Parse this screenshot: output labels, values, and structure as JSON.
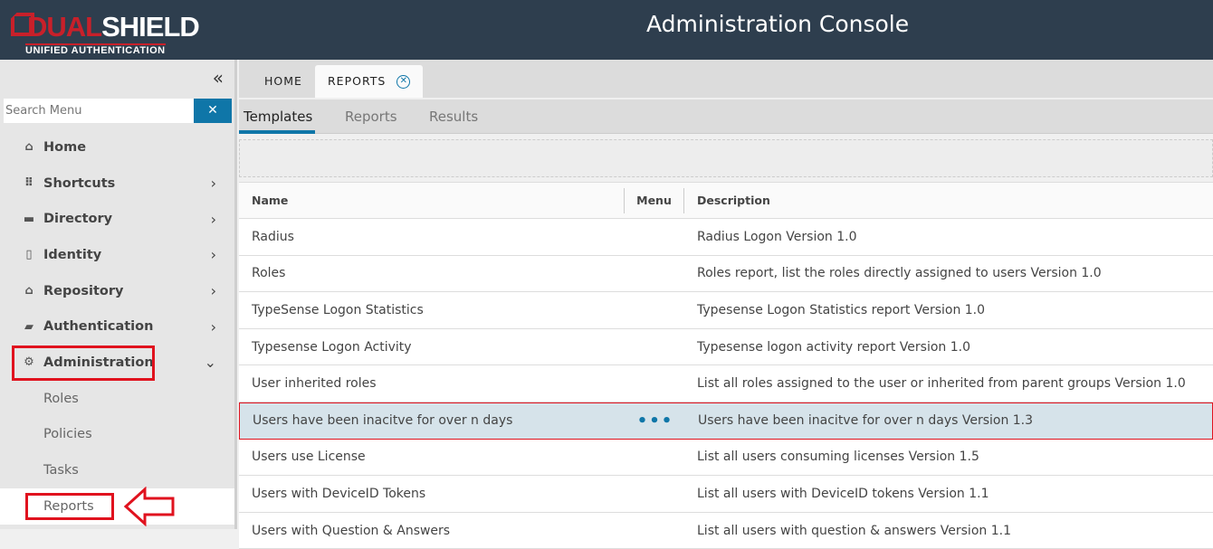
{
  "header": {
    "logo_text_red": "DUAL",
    "logo_text_white": "SHIELD",
    "logo_sub": "UNIFIED AUTHENTICATION",
    "title": "Administration Console"
  },
  "sidebar": {
    "search_placeholder": "Search Menu",
    "items": [
      {
        "label": "Home",
        "icon": "home-icon",
        "glyph": "⌂",
        "chevron": ""
      },
      {
        "label": "Shortcuts",
        "icon": "grid-icon",
        "glyph": "⠿",
        "chevron": "›"
      },
      {
        "label": "Directory",
        "icon": "folder-icon",
        "glyph": "▬",
        "chevron": "›"
      },
      {
        "label": "Identity",
        "icon": "id-badge-icon",
        "glyph": "▯",
        "chevron": "›"
      },
      {
        "label": "Repository",
        "icon": "bank-icon",
        "glyph": "⌂",
        "chevron": "›"
      },
      {
        "label": "Authentication",
        "icon": "wallet-icon",
        "glyph": "▰",
        "chevron": "›"
      },
      {
        "label": "Administration",
        "icon": "user-gear-icon",
        "glyph": "⚙",
        "chevron": "⌄"
      }
    ],
    "subitems": [
      "Roles",
      "Policies",
      "Tasks",
      "Reports"
    ]
  },
  "tabs": [
    {
      "label": "HOME"
    },
    {
      "label": "REPORTS"
    }
  ],
  "subtabs": [
    "Templates",
    "Reports",
    "Results"
  ],
  "table": {
    "columns": [
      "Name",
      "Menu",
      "Description"
    ],
    "rows": [
      {
        "name": "Radius",
        "menu": "",
        "desc": "Radius Logon Version 1.0"
      },
      {
        "name": "Roles",
        "menu": "",
        "desc": "Roles report, list the roles directly assigned to users Version 1.0"
      },
      {
        "name": "TypeSense Logon Statistics",
        "menu": "",
        "desc": "Typesense Logon Statistics report Version 1.0"
      },
      {
        "name": "Typesense Logon Activity",
        "menu": "",
        "desc": "Typesense logon activity report Version 1.0"
      },
      {
        "name": "User inherited roles",
        "menu": "",
        "desc": "List all roles assigned to the user or inherited from parent groups Version 1.0"
      },
      {
        "name": "Users have been inacitve for over n days",
        "menu": "•••",
        "desc": "Users have been inacitve for over n days Version 1.3"
      },
      {
        "name": "Users use License",
        "menu": "",
        "desc": "List all users consuming licenses Version 1.5"
      },
      {
        "name": "Users with DeviceID Tokens",
        "menu": "",
        "desc": "List all users with DeviceID tokens Version 1.1"
      },
      {
        "name": "Users with Question & Answers",
        "menu": "",
        "desc": "List all users with question & answers Version 1.1"
      }
    ]
  },
  "colors": {
    "header": "#2e3e4e",
    "accent": "#0f76a8",
    "highlight": "#e0121e",
    "brand_red": "#c8202a"
  }
}
